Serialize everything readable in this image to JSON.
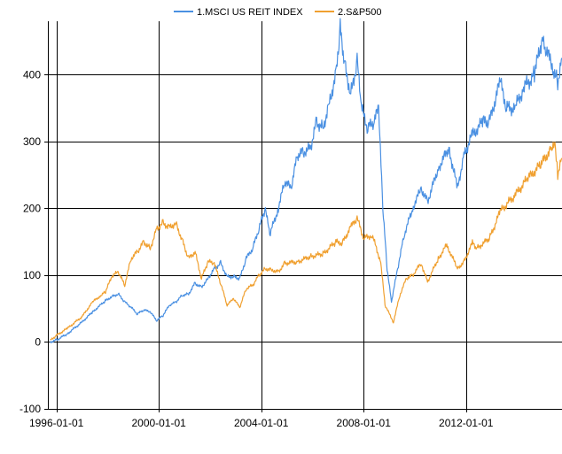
{
  "chart_data": {
    "type": "line",
    "title": "",
    "xlabel": "",
    "ylabel": "",
    "grid": true,
    "legend_position": "top",
    "x_ticks": [
      "1996-01-01",
      "2000-01-01",
      "2004-01-01",
      "2008-01-01",
      "2012-01-01"
    ],
    "y_ticks": [
      -100,
      0,
      100,
      200,
      300,
      400
    ],
    "xlim": [
      "1995-09-01",
      "2015-10-01"
    ],
    "ylim": [
      -100,
      480
    ],
    "series": [
      {
        "name": "1.MSCI US REIT INDEX",
        "color": "#4a90e2",
        "points": [
          [
            "1995-10-01",
            0
          ],
          [
            "1996-01-01",
            3
          ],
          [
            "1996-06-01",
            12
          ],
          [
            "1997-01-01",
            30
          ],
          [
            "1997-06-01",
            45
          ],
          [
            "1997-12-01",
            62
          ],
          [
            "1998-03-01",
            68
          ],
          [
            "1998-06-01",
            72
          ],
          [
            "1998-09-01",
            60
          ],
          [
            "1998-12-01",
            52
          ],
          [
            "1999-03-01",
            42
          ],
          [
            "1999-06-01",
            48
          ],
          [
            "1999-09-01",
            45
          ],
          [
            "1999-12-01",
            32
          ],
          [
            "2000-03-01",
            40
          ],
          [
            "2000-06-01",
            55
          ],
          [
            "2000-09-01",
            60
          ],
          [
            "2000-12-01",
            70
          ],
          [
            "2001-03-01",
            72
          ],
          [
            "2001-06-01",
            88
          ],
          [
            "2001-09-01",
            82
          ],
          [
            "2001-12-01",
            95
          ],
          [
            "2002-03-01",
            110
          ],
          [
            "2002-06-01",
            118
          ],
          [
            "2002-09-01",
            98
          ],
          [
            "2002-12-01",
            98
          ],
          [
            "2003-03-01",
            95
          ],
          [
            "2003-06-01",
            125
          ],
          [
            "2003-09-01",
            140
          ],
          [
            "2003-12-01",
            170
          ],
          [
            "2004-03-01",
            200
          ],
          [
            "2004-05-01",
            160
          ],
          [
            "2004-09-01",
            200
          ],
          [
            "2004-12-01",
            240
          ],
          [
            "2005-03-01",
            230
          ],
          [
            "2005-06-01",
            280
          ],
          [
            "2005-09-01",
            285
          ],
          [
            "2005-12-01",
            290
          ],
          [
            "2006-03-01",
            330
          ],
          [
            "2006-06-01",
            320
          ],
          [
            "2006-09-01",
            360
          ],
          [
            "2006-12-01",
            400
          ],
          [
            "2007-02-01",
            470
          ],
          [
            "2007-04-01",
            420
          ],
          [
            "2007-07-01",
            370
          ],
          [
            "2007-10-01",
            420
          ],
          [
            "2007-12-01",
            350
          ],
          [
            "2008-03-01",
            320
          ],
          [
            "2008-06-01",
            330
          ],
          [
            "2008-08-01",
            350
          ],
          [
            "2008-10-01",
            200
          ],
          [
            "2008-12-01",
            110
          ],
          [
            "2009-02-01",
            60
          ],
          [
            "2009-05-01",
            110
          ],
          [
            "2009-08-01",
            160
          ],
          [
            "2009-12-01",
            200
          ],
          [
            "2010-04-01",
            230
          ],
          [
            "2010-07-01",
            210
          ],
          [
            "2010-12-01",
            260
          ],
          [
            "2011-05-01",
            290
          ],
          [
            "2011-09-01",
            230
          ],
          [
            "2011-12-01",
            280
          ],
          [
            "2012-04-01",
            310
          ],
          [
            "2012-09-01",
            330
          ],
          [
            "2012-12-01",
            330
          ],
          [
            "2013-05-01",
            390
          ],
          [
            "2013-08-01",
            350
          ],
          [
            "2013-12-01",
            350
          ],
          [
            "2014-04-01",
            380
          ],
          [
            "2014-09-01",
            400
          ],
          [
            "2015-01-01",
            460
          ],
          [
            "2015-02-01",
            440
          ],
          [
            "2015-06-01",
            410
          ],
          [
            "2015-08-01",
            390
          ],
          [
            "2015-10-01",
            425
          ]
        ]
      },
      {
        "name": "2.S&P500",
        "color": "#f0a030",
        "points": [
          [
            "1995-10-01",
            2
          ],
          [
            "1996-01-01",
            10
          ],
          [
            "1996-06-01",
            20
          ],
          [
            "1997-01-01",
            38
          ],
          [
            "1997-06-01",
            60
          ],
          [
            "1997-10-01",
            70
          ],
          [
            "1997-12-01",
            75
          ],
          [
            "1998-03-01",
            98
          ],
          [
            "1998-06-01",
            105
          ],
          [
            "1998-09-01",
            85
          ],
          [
            "1998-12-01",
            125
          ],
          [
            "1999-03-01",
            135
          ],
          [
            "1999-06-01",
            150
          ],
          [
            "1999-09-01",
            140
          ],
          [
            "1999-12-01",
            170
          ],
          [
            "2000-03-01",
            178
          ],
          [
            "2000-06-01",
            172
          ],
          [
            "2000-09-01",
            178
          ],
          [
            "2000-12-01",
            152
          ],
          [
            "2001-03-01",
            125
          ],
          [
            "2001-06-01",
            135
          ],
          [
            "2001-09-01",
            95
          ],
          [
            "2001-12-01",
            120
          ],
          [
            "2002-03-01",
            118
          ],
          [
            "2002-06-01",
            88
          ],
          [
            "2002-09-01",
            55
          ],
          [
            "2002-12-01",
            65
          ],
          [
            "2003-03-01",
            52
          ],
          [
            "2003-06-01",
            80
          ],
          [
            "2003-09-01",
            85
          ],
          [
            "2003-12-01",
            100
          ],
          [
            "2004-03-01",
            110
          ],
          [
            "2004-06-01",
            108
          ],
          [
            "2004-09-01",
            105
          ],
          [
            "2004-12-01",
            118
          ],
          [
            "2005-06-01",
            120
          ],
          [
            "2005-12-01",
            128
          ],
          [
            "2006-06-01",
            132
          ],
          [
            "2006-12-01",
            150
          ],
          [
            "2007-03-01",
            148
          ],
          [
            "2007-07-01",
            172
          ],
          [
            "2007-10-01",
            185
          ],
          [
            "2008-01-01",
            155
          ],
          [
            "2008-05-01",
            160
          ],
          [
            "2008-09-01",
            120
          ],
          [
            "2008-11-01",
            55
          ],
          [
            "2009-03-01",
            30
          ],
          [
            "2009-06-01",
            70
          ],
          [
            "2009-09-01",
            95
          ],
          [
            "2009-12-01",
            100
          ],
          [
            "2010-04-01",
            118
          ],
          [
            "2010-07-01",
            90
          ],
          [
            "2010-12-01",
            125
          ],
          [
            "2011-04-01",
            145
          ],
          [
            "2011-09-01",
            110
          ],
          [
            "2011-12-01",
            120
          ],
          [
            "2012-04-01",
            148
          ],
          [
            "2012-06-01",
            140
          ],
          [
            "2012-12-01",
            155
          ],
          [
            "2013-05-01",
            195
          ],
          [
            "2013-12-01",
            220
          ],
          [
            "2014-06-01",
            245
          ],
          [
            "2014-12-01",
            265
          ],
          [
            "2015-05-01",
            290
          ],
          [
            "2015-07-01",
            292
          ],
          [
            "2015-08-01",
            252
          ],
          [
            "2015-10-01",
            275
          ]
        ]
      }
    ]
  }
}
